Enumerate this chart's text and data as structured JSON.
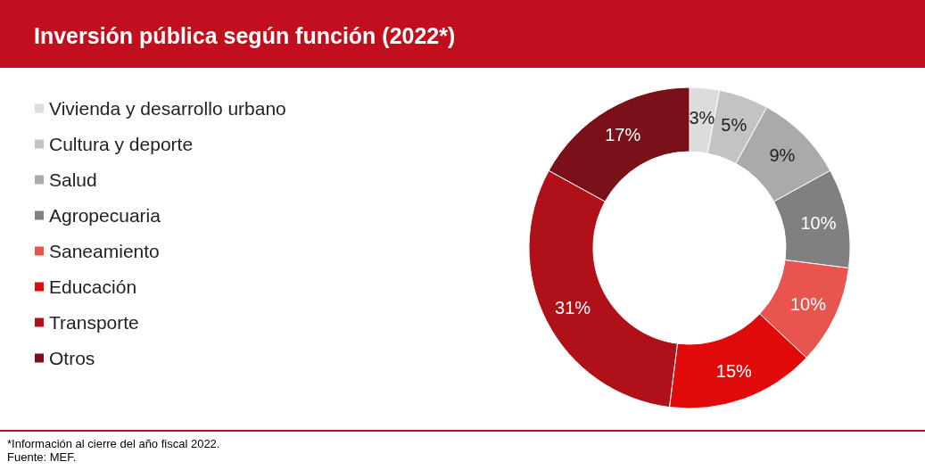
{
  "chart_data": {
    "type": "donut",
    "title": "Inversión pública según función (2022*)",
    "categories": [
      "Vivienda y desarrollo urbano",
      "Cultura y deporte",
      "Salud",
      "Agropecuaria",
      "Saneamiento",
      "Educación",
      "Transporte",
      "Otros"
    ],
    "values": [
      3,
      5,
      9,
      10,
      10,
      15,
      31,
      17
    ],
    "value_labels": [
      "3%",
      "5%",
      "9%",
      "10%",
      "10%",
      "15%",
      "31%",
      "17%"
    ],
    "colors": [
      "#dcdcdc",
      "#c3c3c3",
      "#aaaaaa",
      "#808080",
      "#e8554f",
      "#e00a0a",
      "#b01018",
      "#7a1018"
    ],
    "legend": "left",
    "annotations": [
      "*Información al cierre del año fiscal 2022.",
      "Fuente: MEF."
    ]
  }
}
